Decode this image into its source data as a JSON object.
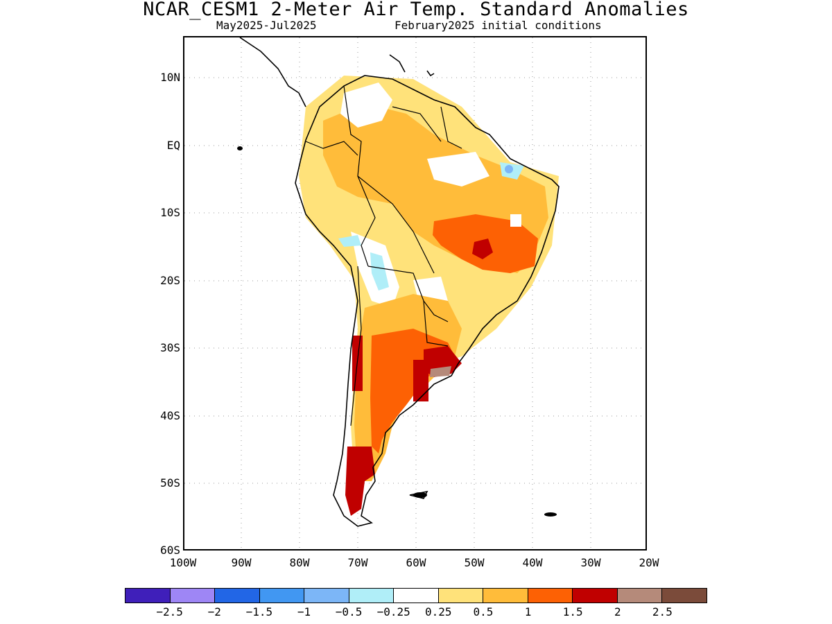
{
  "title": "NCAR_CESM1 2-Meter Air Temp. Standard Anomalies",
  "subtitle_left": "May2025-Jul2025",
  "subtitle_right": "February2025 initial conditions",
  "y_axis_labels": [
    "10N",
    "EQ",
    "10S",
    "20S",
    "30S",
    "40S",
    "50S",
    "60S"
  ],
  "x_axis_labels": [
    "100W",
    "90W",
    "80W",
    "70W",
    "60W",
    "50W",
    "40W",
    "30W",
    "20W"
  ],
  "legend": {
    "colors": [
      "#3f1fba",
      "#9e86f5",
      "#2266e6",
      "#4197f2",
      "#7cb6f7",
      "#b0eef8",
      "#ffffff",
      "#ffe27a",
      "#ffbc3a",
      "#fd6104",
      "#c00000",
      "#b58a7a",
      "#7b4b3a"
    ],
    "labels": [
      "-2.5",
      "-2",
      "-1.5",
      "-1",
      "-0.5",
      "-0.25",
      "0.25",
      "0.5",
      "1",
      "1.5",
      "2",
      "2.5"
    ]
  },
  "map": {
    "lon_range": [
      -100,
      -20
    ],
    "lat_range": [
      -60,
      16
    ],
    "anomaly_regions": [
      {
        "level": "0.5",
        "color": "#ffe27a",
        "desc": "northern South America"
      },
      {
        "level": "1",
        "color": "#ffbc3a",
        "desc": "Amazon basin"
      },
      {
        "level": "1.5",
        "color": "#fd6104",
        "desc": "central Brazil"
      },
      {
        "level": "2",
        "color": "#c00000",
        "desc": "central Brazil core"
      },
      {
        "level": "1",
        "color": "#ffbc3a",
        "desc": "Argentina"
      },
      {
        "level": "1.5",
        "color": "#fd6104",
        "desc": "central Argentina"
      },
      {
        "level": "2",
        "color": "#c00000",
        "desc": "Uruguay / Chile / Patagonia"
      },
      {
        "level": "2.5",
        "color": "#b58a7a",
        "desc": "Rio de la Plata"
      },
      {
        "level": "-0.25",
        "color": "#b0eef8",
        "desc": "Peru / Bolivia strip"
      },
      {
        "level": "-1",
        "color": "#7cb6f7",
        "desc": "NE Brazil small spot"
      }
    ]
  }
}
